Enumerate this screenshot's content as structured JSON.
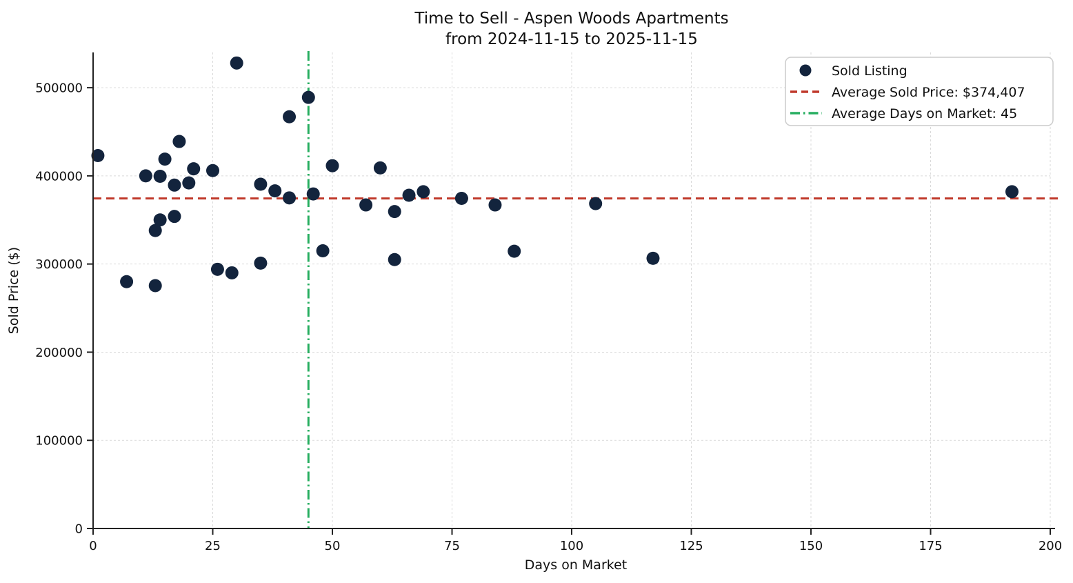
{
  "figure": {
    "title_line1": "Time to Sell - Aspen Woods Apartments",
    "title_line2": "from 2024-11-15 to 2025-11-15"
  },
  "colors": {
    "background": "#ffffff",
    "point": "#13243d",
    "avg_price_line": "#c0392b",
    "avg_days_line": "#27ae60",
    "grid": "#d9d9d9",
    "spine": "#222222",
    "text": "#111111",
    "legend_border": "#cccccc",
    "legend_background": "#ffffff"
  },
  "chart_data": {
    "type": "scatter",
    "title": "Time to Sell - Aspen Woods Apartments\nfrom 2024-11-15 to 2025-11-15",
    "xlabel": "Days on Market",
    "ylabel": "Sold Price ($)",
    "xlim": [
      0,
      200
    ],
    "ylim": [
      0,
      540000
    ],
    "x_ticks": [
      0,
      25,
      50,
      75,
      100,
      125,
      150,
      175,
      200
    ],
    "y_ticks": [
      0,
      100000,
      200000,
      300000,
      400000,
      500000
    ],
    "grid": true,
    "legend_position": "upper right",
    "series": [
      {
        "name": "Sold Listing",
        "marker": "circle",
        "color": "#13243d",
        "points": [
          [
            1,
            423000
          ],
          [
            7,
            280000
          ],
          [
            11,
            400000
          ],
          [
            13,
            275500
          ],
          [
            13,
            338000
          ],
          [
            14,
            350000
          ],
          [
            14,
            399500
          ],
          [
            15,
            419000
          ],
          [
            17,
            354000
          ],
          [
            17,
            389500
          ],
          [
            18,
            439000
          ],
          [
            20,
            392000
          ],
          [
            21,
            408000
          ],
          [
            25,
            406000
          ],
          [
            26,
            294000
          ],
          [
            29,
            290000
          ],
          [
            30,
            528000
          ],
          [
            35,
            301000
          ],
          [
            35,
            390500
          ],
          [
            38,
            383000
          ],
          [
            41,
            375000
          ],
          [
            41,
            467000
          ],
          [
            45,
            489000
          ],
          [
            46,
            379500
          ],
          [
            48,
            315000
          ],
          [
            50,
            411500
          ],
          [
            57,
            367000
          ],
          [
            60,
            409000
          ],
          [
            63,
            305000
          ],
          [
            63,
            359500
          ],
          [
            66,
            378000
          ],
          [
            69,
            382000
          ],
          [
            77,
            374500
          ],
          [
            84,
            367000
          ],
          [
            88,
            314500
          ],
          [
            105,
            368500
          ],
          [
            117,
            306500
          ],
          [
            192,
            382000
          ]
        ]
      }
    ],
    "reference_lines": [
      {
        "name": "avg-sold-price-line",
        "orientation": "horizontal",
        "value": 374407,
        "style": "dashed",
        "color": "#c0392b",
        "label": "Average Sold Price: $374,407"
      },
      {
        "name": "avg-days-on-market-line",
        "orientation": "vertical",
        "value": 45,
        "style": "dashdot",
        "color": "#27ae60",
        "label": "Average Days on Market: 45"
      }
    ],
    "legend_items": [
      {
        "label": "Sold Listing",
        "marker": "dot",
        "color": "#13243d"
      },
      {
        "label": "Average Sold Price: $374,407",
        "marker": "dashed",
        "color": "#c0392b"
      },
      {
        "label": "Average Days on Market: 45",
        "marker": "dashdot",
        "color": "#27ae60"
      }
    ]
  }
}
